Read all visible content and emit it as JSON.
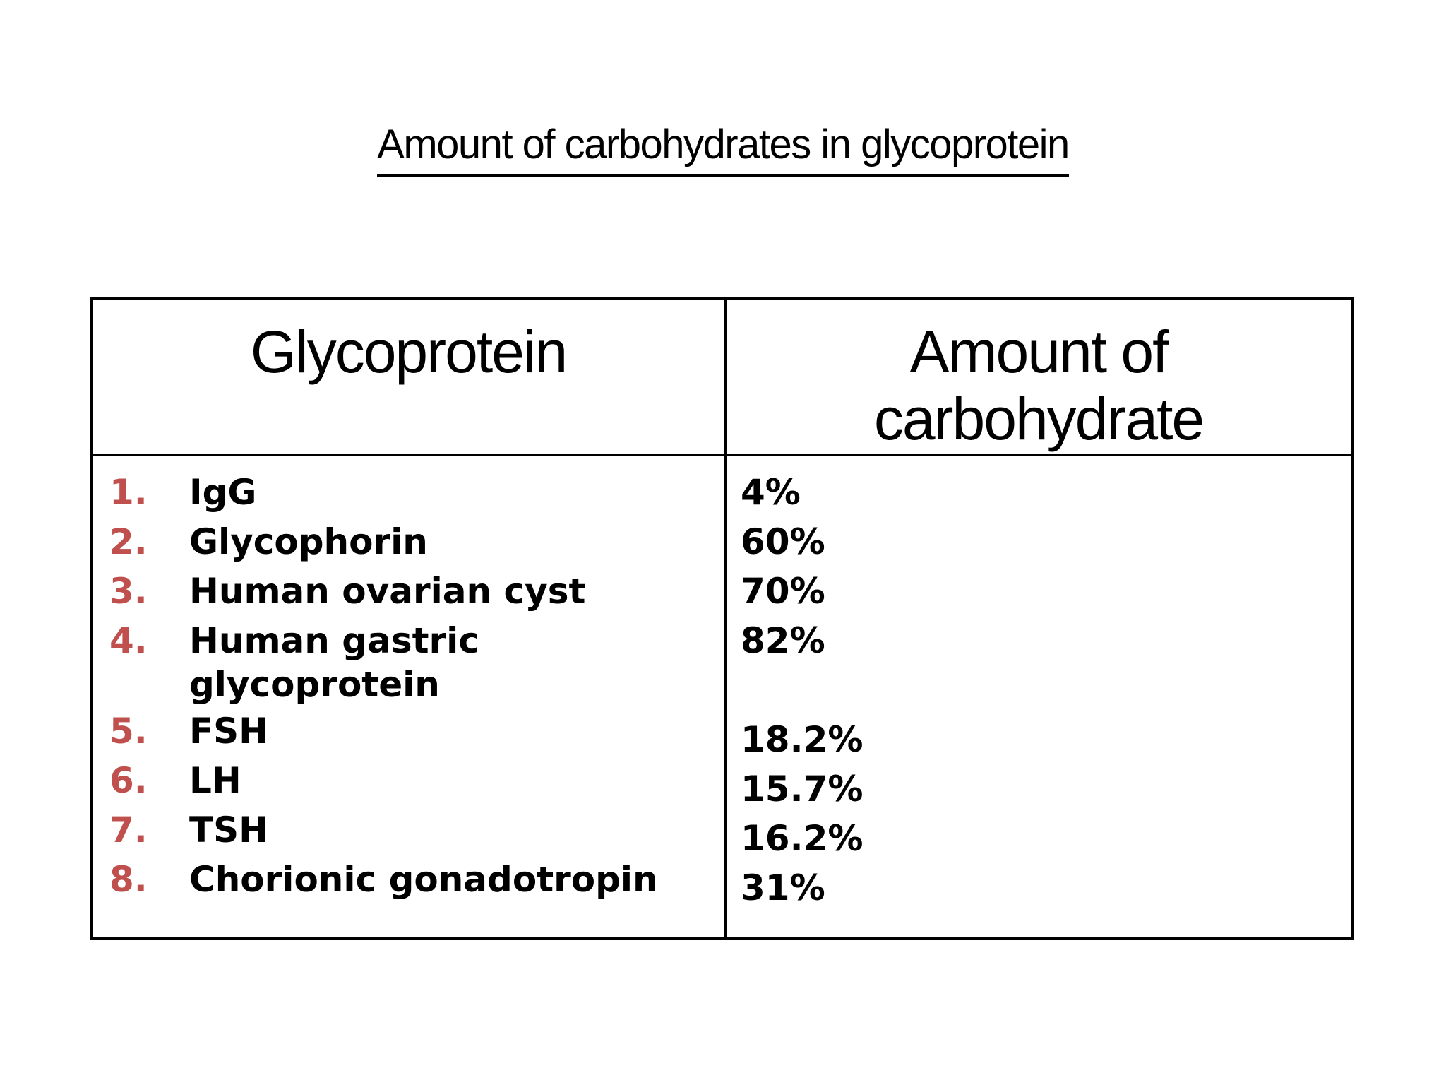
{
  "slide": {
    "title": "Amount of carbohydrates in glycoprotein",
    "background_color": "#ffffff",
    "text_color": "#000000",
    "border_color": "#000000",
    "number_accent_color": "#c0504d"
  },
  "table": {
    "col1_header": "Glycoprotein",
    "col2_header": "Amount of carbohydrate",
    "rows": [
      {
        "num": "1.",
        "glycoprotein": "IgG",
        "amount": "4%"
      },
      {
        "num": "2.",
        "glycoprotein": "Glycophorin",
        "amount": "60%"
      },
      {
        "num": "3.",
        "glycoprotein": "Human ovarian cyst",
        "amount": "70%"
      },
      {
        "num": "4.",
        "glycoprotein": "Human gastric\nglycoprotein",
        "amount": "82%"
      },
      {
        "num": "5.",
        "glycoprotein": "FSH",
        "amount": "18.2%"
      },
      {
        "num": "6.",
        "glycoprotein": "LH",
        "amount": "15.7%"
      },
      {
        "num": "7.",
        "glycoprotein": "TSH",
        "amount": "16.2%"
      },
      {
        "num": "8.",
        "glycoprotein": "Chorionic gonadotropin",
        "amount": "31%"
      }
    ]
  }
}
